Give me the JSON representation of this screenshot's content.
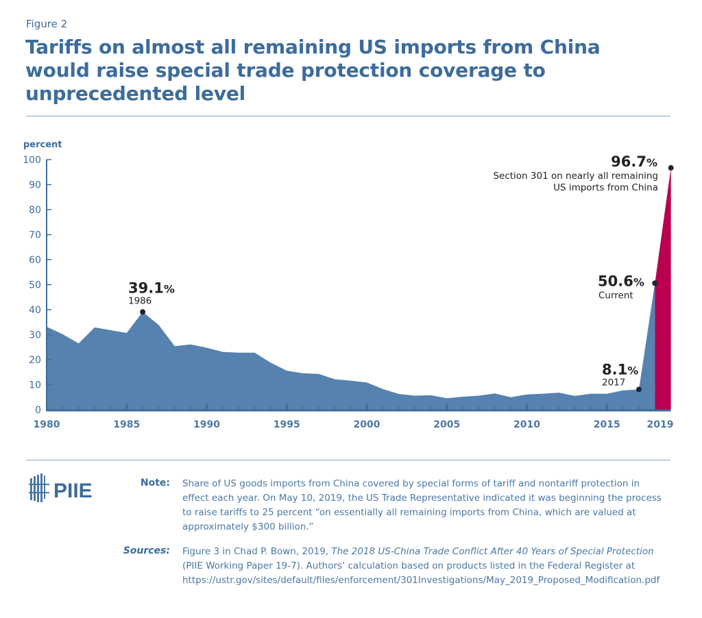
{
  "header": {
    "figure_label": "Figure 2",
    "title": "Tariffs on almost all remaining US imports from China would raise special trade protection coverage to unprecedented level"
  },
  "chart_data": {
    "type": "area",
    "ylabel": "percent",
    "ylim": [
      0,
      100
    ],
    "yticks": [
      0,
      10,
      20,
      30,
      40,
      50,
      60,
      70,
      80,
      90,
      100
    ],
    "xticks": [
      "1980",
      "1985",
      "1990",
      "1995",
      "2000",
      "2005",
      "2010",
      "2015",
      "2019"
    ],
    "colors": {
      "historical": "#5682b0",
      "proposed": "#b8004f",
      "text": "#3c6c9c"
    },
    "grid": false,
    "years": [
      1980,
      1981,
      1982,
      1983,
      1984,
      1985,
      1986,
      1987,
      1988,
      1989,
      1990,
      1991,
      1992,
      1993,
      1994,
      1995,
      1996,
      1997,
      1998,
      1999,
      2000,
      2001,
      2002,
      2003,
      2004,
      2005,
      2006,
      2007,
      2008,
      2009,
      2010,
      2011,
      2012,
      2013,
      2014,
      2015,
      2016,
      2017
    ],
    "values": [
      33.2,
      30.2,
      26.5,
      32.9,
      31.8,
      30.7,
      39.1,
      33.9,
      25.4,
      26.1,
      24.8,
      23.1,
      22.8,
      22.8,
      18.8,
      15.6,
      14.6,
      14.3,
      12.2,
      11.6,
      10.9,
      8.3,
      6.3,
      5.6,
      5.8,
      4.6,
      5.2,
      5.6,
      6.5,
      5.0,
      6.1,
      6.4,
      6.8,
      5.5,
      6.4,
      6.4,
      7.7,
      8.1
    ],
    "current": 50.6,
    "proposed": 96.7,
    "annotations": [
      {
        "value": "39.1%",
        "label": "1986"
      },
      {
        "value": "8.1%",
        "label": "2017"
      },
      {
        "value": "50.6%",
        "label": "Current"
      },
      {
        "value": "96.7%",
        "label": "Section 301 on nearly all remaining",
        "label2": "US imports from China"
      }
    ]
  },
  "footer": {
    "logo": "PIIE",
    "note_label": "Note:",
    "note_text": "Share of US goods imports from China covered by special forms of tariff and nontariff protection in effect each year. On May 10, 2019, the US Trade Representative indicated it was beginning the process to raise tariffs to 25 percent “on essentially all remaining imports from China, which are valued at approximately $300 billion.”",
    "sources_label": "Sources:",
    "sources_pre": "Figure 3 in Chad P. Bown, 2019, ",
    "sources_italic": "The 2018 US-China Trade Conflict After 40 Years of Special Protection",
    "sources_post": " (PIIE Working Paper 19-7). Authors’ calculation based on products listed in the Federal Register at https://ustr.gov/sites/default/files/enforcement/301Investigations/May_2019_Proposed_Modification.pdf"
  }
}
